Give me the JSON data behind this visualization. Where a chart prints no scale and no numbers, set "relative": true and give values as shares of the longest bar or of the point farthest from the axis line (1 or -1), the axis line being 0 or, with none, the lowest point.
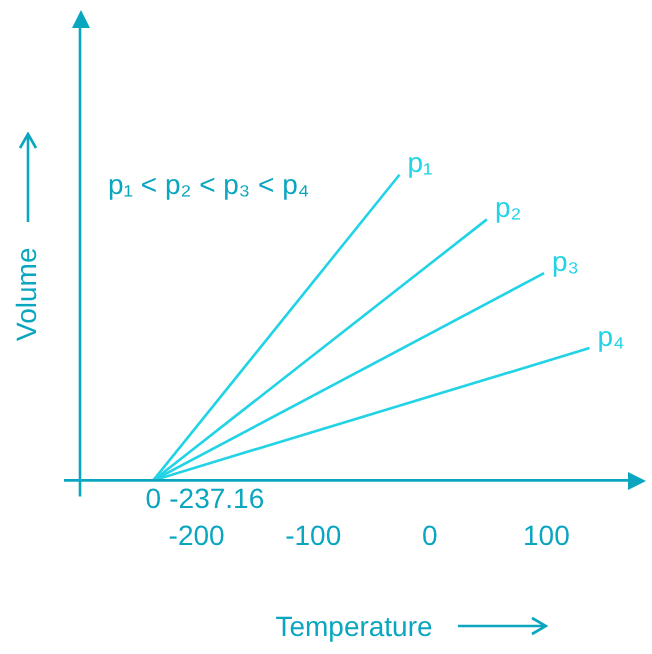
{
  "chart_data": {
    "type": "line",
    "xlabel": "Temperature",
    "ylabel": "Volume",
    "relative": true,
    "xlim": [
      -300,
      170
    ],
    "xticks": [
      -200,
      -100,
      0,
      100
    ],
    "grid": false,
    "legend": false,
    "marker": "none",
    "line_style": "solid",
    "annotations": [
      "p₁ < p₂ < p₃ < p₄",
      {
        "text": "-237.16",
        "x": -237.16,
        "y": 0
      },
      {
        "text": "0",
        "x": -237.16,
        "y": 0
      }
    ],
    "series": [
      {
        "name": "p₁",
        "color": "#22d3e6",
        "x": [
          -237.16,
          -26
        ],
        "values": [
          0,
          1
        ]
      },
      {
        "name": "p₂",
        "color": "#22d3e6",
        "x": [
          -237.16,
          49
        ],
        "values": [
          0,
          0.854
        ]
      },
      {
        "name": "p₃",
        "color": "#22d3e6",
        "x": [
          -237.16,
          98
        ],
        "values": [
          0,
          0.678
        ]
      },
      {
        "name": "p₄",
        "color": "#22d3e6",
        "x": [
          -237.16,
          137
        ],
        "values": [
          0,
          0.433
        ]
      }
    ]
  }
}
